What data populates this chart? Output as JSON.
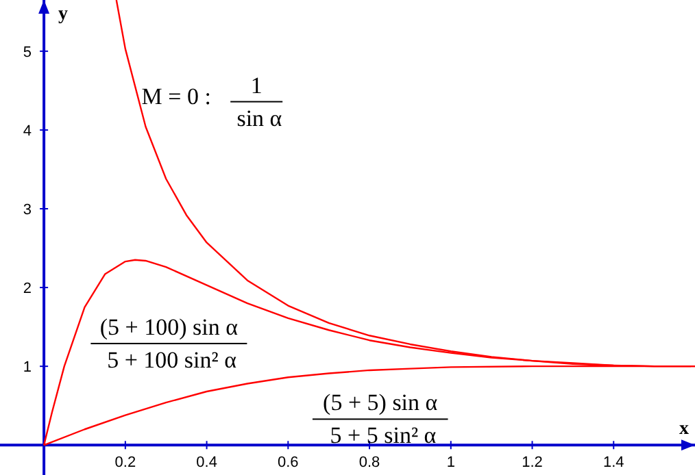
{
  "chart_data": {
    "type": "line",
    "xlabel": "x",
    "ylabel": "y",
    "xlim": [
      -0.108,
      1.6
    ],
    "ylim": [
      -0.38,
      5.65
    ],
    "xticks": [
      0.2,
      0.4,
      0.6,
      0.8,
      1,
      1.2,
      1.4
    ],
    "yticks": [
      1,
      2,
      3,
      4,
      5
    ],
    "grid": false,
    "marker": "none",
    "line_style": "solid",
    "series": [
      {
        "name": "M = 0 : 1\nsin α",
        "color": "#ff0000",
        "x": [
          0.178,
          0.2,
          0.25,
          0.3,
          0.35,
          0.4,
          0.5,
          0.6,
          0.7,
          0.8,
          0.9,
          1.0,
          1.1,
          1.2,
          1.3,
          1.4,
          1.5,
          1.6
        ],
        "values": [
          5.65,
          5.03,
          4.04,
          3.38,
          2.92,
          2.57,
          2.09,
          1.77,
          1.55,
          1.39,
          1.28,
          1.19,
          1.12,
          1.07,
          1.04,
          1.01,
          1.0,
          1.0
        ]
      },
      {
        "name": "(5 + 100) sin α\n5 + 100 sin² α",
        "color": "#ff0000",
        "x": [
          0,
          0.02,
          0.05,
          0.1,
          0.15,
          0.2,
          0.224,
          0.25,
          0.3,
          0.4,
          0.5,
          0.6,
          0.7,
          0.8,
          0.9,
          1.0,
          1.1,
          1.2,
          1.3,
          1.4,
          1.5,
          1.6
        ],
        "values": [
          0,
          0.42,
          1.0,
          1.75,
          2.17,
          2.33,
          2.35,
          2.34,
          2.26,
          2.03,
          1.8,
          1.61,
          1.46,
          1.33,
          1.24,
          1.17,
          1.11,
          1.07,
          1.03,
          1.01,
          1.0,
          1.0
        ]
      },
      {
        "name": "(5 + 5) sin α\n5 + 5 sin² α",
        "color": "#ff0000",
        "x": [
          0,
          0.1,
          0.2,
          0.3,
          0.4,
          0.5,
          0.6,
          0.7,
          0.8,
          0.9,
          1.0,
          1.2,
          1.4,
          1.59
        ],
        "values": [
          0,
          0.2,
          0.38,
          0.54,
          0.68,
          0.78,
          0.86,
          0.91,
          0.95,
          0.97,
          0.99,
          1.0,
          1.0,
          1.0
        ]
      }
    ]
  }
}
